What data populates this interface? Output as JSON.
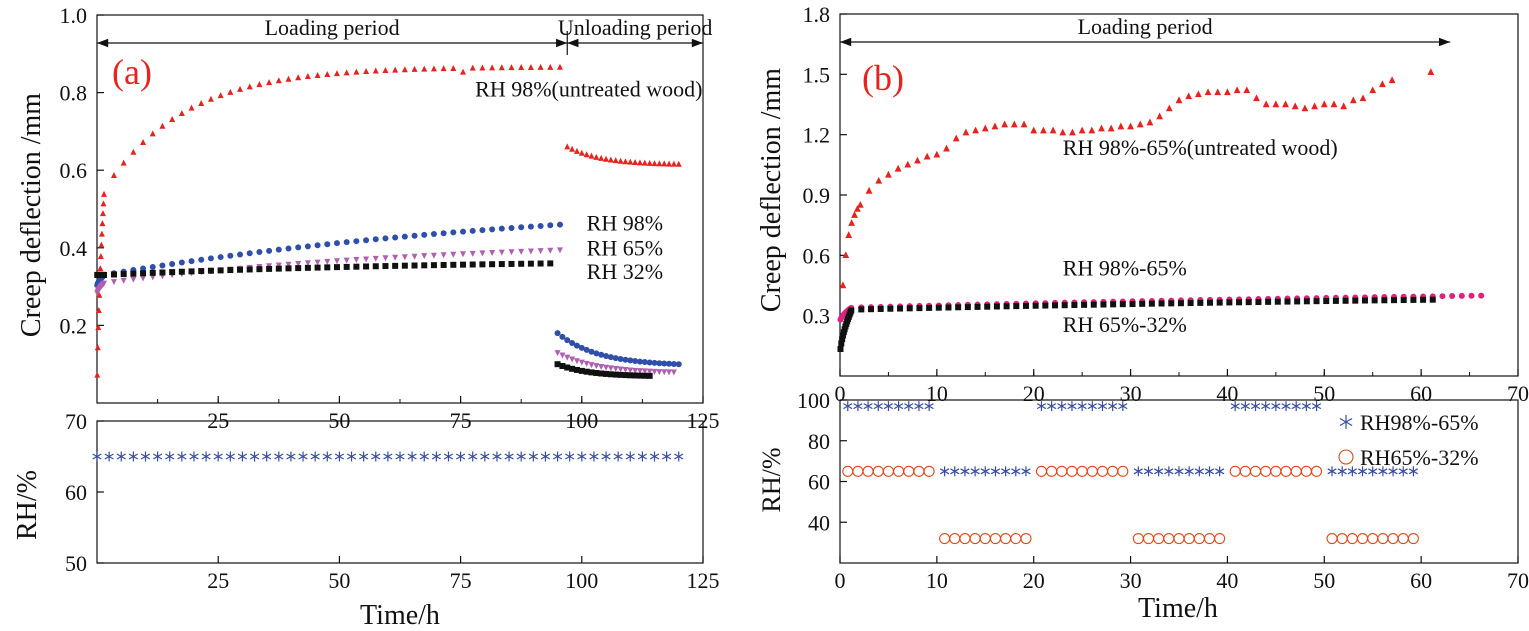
{
  "chart_data": [
    {
      "id": "a",
      "type": "scatter",
      "panel_label": "(a)",
      "xlabel": "Time/h",
      "ylabel": "Creep deflection /mm",
      "xlim": [
        0,
        125
      ],
      "ylim": [
        0,
        1.0
      ],
      "x_ticks": [
        "25",
        "50",
        "75",
        "100",
        "125"
      ],
      "y_ticks": [
        "0.2",
        "0.4",
        "0.6",
        "0.8",
        "1.0"
      ],
      "periods": [
        {
          "label": "Loading period",
          "from": 0,
          "to": 97
        },
        {
          "label": "Unloading period",
          "from": 97,
          "to": 125
        }
      ],
      "series": [
        {
          "name": "RH 98%(untreated wood)",
          "color": "#e8231f",
          "marker": "triangle",
          "loading": {
            "t0": 0,
            "y0": 0.0,
            "ramp_end": 1.5,
            "ramp_y": 0.55,
            "x_end": 96,
            "y_end": 0.865,
            "k": 7
          },
          "unloading": {
            "x_start": 97,
            "y_start": 0.66,
            "x_end": 120,
            "y_end": 0.615,
            "k": 10
          },
          "bumps": [
            {
              "x": 75,
              "dy": 0.0
            }
          ]
        },
        {
          "name": "RH 98%",
          "color": "#2f4fa8",
          "marker": "circle",
          "loading": {
            "t0": 0,
            "y0": 0.3,
            "ramp_end": 1.5,
            "ramp_y": 0.33,
            "x_end": 96,
            "y_end": 0.46,
            "k": 40
          },
          "unloading": {
            "x_start": 95,
            "y_start": 0.18,
            "x_end": 120,
            "y_end": 0.1,
            "k": 9
          }
        },
        {
          "name": "RH 65%",
          "color": "#b060b0",
          "marker": "triangle-down",
          "loading": {
            "t0": 0,
            "y0": 0.28,
            "ramp_end": 1.5,
            "ramp_y": 0.31,
            "x_end": 96,
            "y_end": 0.395,
            "k": 30
          },
          "unloading": {
            "x_start": 95,
            "y_start": 0.13,
            "x_end": 119,
            "y_end": 0.08,
            "k": 9
          }
        },
        {
          "name": "RH 32%",
          "color": "#111111",
          "marker": "square",
          "loading": {
            "t0": 0,
            "y0": 0.33,
            "ramp_end": 1.5,
            "ramp_y": 0.33,
            "x_end": 95,
            "y_end": 0.36,
            "k": 30
          },
          "unloading": {
            "x_start": 95,
            "y_start": 0.1,
            "x_end": 114,
            "y_end": 0.07,
            "k": 9
          }
        }
      ],
      "annotations": [
        {
          "text": "RH 98%(untreated wood)",
          "x": 78,
          "y": 0.79
        },
        {
          "text": "RH 98%",
          "x": 101,
          "y": 0.445
        },
        {
          "text": "RH 65%",
          "x": 101,
          "y": 0.38
        },
        {
          "text": "RH 32%",
          "x": 101,
          "y": 0.32
        }
      ],
      "rh_panel": {
        "ylabel": "RH/%",
        "xlabel": "Time/h",
        "ylim": [
          50,
          70
        ],
        "y_ticks": [
          "50",
          "60",
          "70"
        ],
        "x_ticks": [
          "25",
          "50",
          "75",
          "100",
          "125"
        ],
        "series": [
          {
            "name": "RH 65%",
            "color": "#3a4ea0",
            "marker": "asterisk",
            "x_start": 0,
            "x_end": 122,
            "step": 2.5,
            "y": 65
          }
        ]
      }
    },
    {
      "id": "b",
      "type": "scatter",
      "panel_label": "(b)",
      "xlabel": "Time/h",
      "ylabel": "Creep deflection /mm",
      "xlim": [
        0,
        70
      ],
      "ylim": [
        0,
        1.8
      ],
      "x_ticks": [
        "0",
        "10",
        "20",
        "30",
        "40",
        "50",
        "60",
        "70"
      ],
      "y_ticks": [
        "0.3",
        "0.6",
        "0.9",
        "1.2",
        "1.5",
        "1.8"
      ],
      "periods": [
        {
          "label": "Loading period",
          "from": 0,
          "to": 63
        }
      ],
      "series": [
        {
          "name": "RH 98%-65%(untreated wood)",
          "color": "#e8231f",
          "marker": "triangle",
          "points_x": [
            0.3,
            0.6,
            0.9,
            1.2,
            1.5,
            1.8,
            2.1,
            3,
            4,
            5,
            6,
            7,
            8,
            9,
            10,
            11,
            12,
            13,
            14,
            15,
            16,
            17,
            18,
            19,
            20,
            21,
            22,
            23,
            24,
            25,
            26,
            27,
            28,
            29,
            30,
            31,
            32,
            33,
            34,
            35,
            36,
            37,
            38,
            39,
            40,
            41,
            42,
            43,
            44,
            45,
            46,
            47,
            48,
            49,
            50,
            51,
            52,
            53,
            54,
            55,
            56,
            57,
            61
          ],
          "points_y": [
            0.45,
            0.6,
            0.7,
            0.76,
            0.8,
            0.83,
            0.85,
            0.92,
            0.97,
            1.0,
            1.03,
            1.05,
            1.07,
            1.09,
            1.1,
            1.13,
            1.18,
            1.21,
            1.22,
            1.23,
            1.24,
            1.25,
            1.25,
            1.25,
            1.22,
            1.22,
            1.22,
            1.21,
            1.21,
            1.22,
            1.22,
            1.23,
            1.23,
            1.24,
            1.24,
            1.25,
            1.26,
            1.29,
            1.33,
            1.37,
            1.39,
            1.4,
            1.41,
            1.41,
            1.41,
            1.42,
            1.42,
            1.38,
            1.35,
            1.35,
            1.35,
            1.34,
            1.33,
            1.34,
            1.35,
            1.35,
            1.34,
            1.37,
            1.38,
            1.42,
            1.45,
            1.47,
            1.51
          ]
        },
        {
          "name": "RH 98%-65%",
          "color": "#e0207e",
          "marker": "circle",
          "loading": {
            "t0": 0,
            "y0": 0.27,
            "ramp_end": 1.2,
            "ramp_y": 0.34,
            "x_end": 67,
            "y_end": 0.4,
            "k": 60
          }
        },
        {
          "name": "RH 65%-32%",
          "color": "#111111",
          "marker": "square",
          "loading": {
            "t0": 0,
            "y0": 0.1,
            "ramp_end": 1.2,
            "ramp_y": 0.33,
            "x_end": 62,
            "y_end": 0.38,
            "k": 60
          }
        }
      ],
      "annotations": [
        {
          "text": "RH 98%-65%(untreated wood)",
          "x": 23,
          "y": 1.1
        },
        {
          "text": "RH 98%-65%",
          "x": 23,
          "y": 0.5
        },
        {
          "text": "RH 65%-32%",
          "x": 23,
          "y": 0.22
        }
      ],
      "rh_panel": {
        "ylabel": "RH/%",
        "xlabel": "Time/h",
        "ylim": [
          20,
          100
        ],
        "y_ticks": [
          "40",
          "60",
          "80",
          "100"
        ],
        "x_ticks": [
          "0",
          "10",
          "20",
          "30",
          "40",
          "50",
          "60",
          "70"
        ],
        "series": [
          {
            "name": "RH98%-65%",
            "color": "#3a4ea0",
            "marker": "asterisk",
            "segments": [
              {
                "x_start": 0,
                "x_end": 10,
                "y": 97
              },
              {
                "x_start": 10,
                "x_end": 20,
                "y": 65
              },
              {
                "x_start": 20,
                "x_end": 30,
                "y": 97
              },
              {
                "x_start": 30,
                "x_end": 40,
                "y": 65
              },
              {
                "x_start": 40,
                "x_end": 50,
                "y": 97
              },
              {
                "x_start": 50,
                "x_end": 60,
                "y": 65
              }
            ]
          },
          {
            "name": "RH65%-32%",
            "color": "#e04a1a",
            "marker": "open-circle",
            "segments": [
              {
                "x_start": 0,
                "x_end": 10,
                "y": 65
              },
              {
                "x_start": 10,
                "x_end": 20,
                "y": 32
              },
              {
                "x_start": 20,
                "x_end": 30,
                "y": 65
              },
              {
                "x_start": 30,
                "x_end": 40,
                "y": 32
              },
              {
                "x_start": 40,
                "x_end": 50,
                "y": 65
              },
              {
                "x_start": 50,
                "x_end": 60,
                "y": 32
              }
            ]
          }
        ],
        "legend": [
          {
            "label": "RH98%-65%",
            "marker": "asterisk",
            "color": "#3a4ea0"
          },
          {
            "label": "RH65%-32%",
            "marker": "open-circle",
            "color": "#e04a1a"
          }
        ]
      }
    }
  ]
}
